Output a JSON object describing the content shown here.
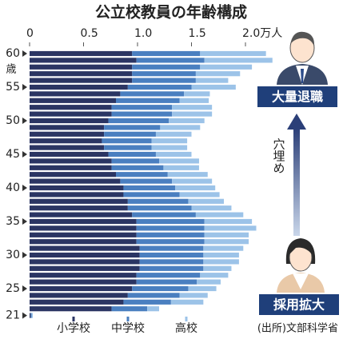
{
  "chart_data": {
    "type": "bar",
    "orientation": "horizontal",
    "stacked": true,
    "title": "公立校教員の年齢構成",
    "y_unit": "歳",
    "categories": [
      "60",
      null,
      null,
      null,
      null,
      "55",
      null,
      null,
      null,
      null,
      "50",
      null,
      null,
      null,
      null,
      "45",
      null,
      null,
      null,
      null,
      "40",
      null,
      null,
      null,
      null,
      "35",
      null,
      null,
      null,
      null,
      "30",
      null,
      null,
      null,
      null,
      "25",
      null,
      null,
      null,
      "21"
    ],
    "series": [
      {
        "name": "小学校",
        "color": "#2b3563",
        "values": [
          0.95,
          0.99,
          0.95,
          0.95,
          0.95,
          0.91,
          0.84,
          0.8,
          0.76,
          0.76,
          0.73,
          0.69,
          0.69,
          0.67,
          0.69,
          0.73,
          0.76,
          0.76,
          0.8,
          0.84,
          0.87,
          0.87,
          0.91,
          0.91,
          0.95,
          0.99,
          0.99,
          0.99,
          0.99,
          1.02,
          1.02,
          1.02,
          1.02,
          0.99,
          0.99,
          0.95,
          0.91,
          0.87,
          0.76,
          0.01
        ]
      },
      {
        "name": "中学校",
        "color": "#4a7fc0",
        "values": [
          0.63,
          0.63,
          0.63,
          0.59,
          0.59,
          0.59,
          0.59,
          0.59,
          0.56,
          0.56,
          0.56,
          0.52,
          0.48,
          0.46,
          0.44,
          0.44,
          0.44,
          0.48,
          0.48,
          0.48,
          0.48,
          0.52,
          0.56,
          0.59,
          0.59,
          0.63,
          0.63,
          0.63,
          0.63,
          0.59,
          0.59,
          0.59,
          0.59,
          0.59,
          0.56,
          0.52,
          0.48,
          0.44,
          0.33,
          0.01
        ]
      },
      {
        "name": "高校",
        "color": "#9cc3e8",
        "values": [
          0.61,
          0.63,
          0.48,
          0.41,
          0.3,
          0.41,
          0.24,
          0.27,
          0.37,
          0.37,
          0.33,
          0.37,
          0.33,
          0.33,
          0.33,
          0.33,
          0.37,
          0.33,
          0.37,
          0.37,
          0.37,
          0.37,
          0.33,
          0.37,
          0.44,
          0.44,
          0.48,
          0.41,
          0.41,
          0.37,
          0.33,
          0.33,
          0.26,
          0.26,
          0.22,
          0.26,
          0.26,
          0.3,
          0.11,
          0.01
        ]
      }
    ],
    "xlim": [
      0,
      2.3
    ],
    "xticks": [
      0,
      0.5,
      {
        "value": 1,
        "label": "1.0"
      },
      1.5,
      {
        "value": 2,
        "label": "2.0万人"
      }
    ],
    "source": "(出所)文部科学省",
    "annotations": {
      "top_badge": "大量退職",
      "arrow_label": "穴埋め",
      "bottom_badge": "採用拡大"
    }
  }
}
